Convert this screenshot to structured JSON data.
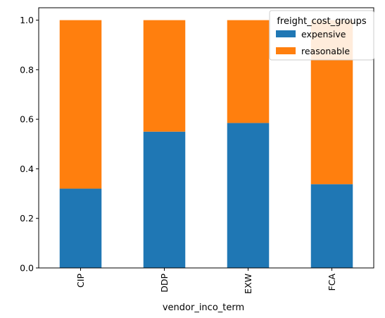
{
  "chart_data": {
    "type": "bar",
    "stacked": true,
    "categories": [
      "CIP",
      "DDP",
      "EXW",
      "FCA"
    ],
    "series": [
      {
        "name": "expensive",
        "color": "#1f77b4",
        "values": [
          0.32,
          0.55,
          0.585,
          0.338
        ]
      },
      {
        "name": "reasonable",
        "color": "#ff7f0e",
        "values": [
          0.68,
          0.45,
          0.415,
          0.662
        ]
      }
    ],
    "xlabel": "vendor_inco_term",
    "ylabel": "",
    "ylim": [
      0,
      1.05
    ],
    "yticks": [
      0.0,
      0.2,
      0.4,
      0.6,
      0.8,
      1.0
    ],
    "ytick_labels": [
      "0.0",
      "0.2",
      "0.4",
      "0.6",
      "0.8",
      "1.0"
    ],
    "legend": {
      "title": "freight_cost_groups",
      "placement": "top-right"
    },
    "grid": false
  }
}
